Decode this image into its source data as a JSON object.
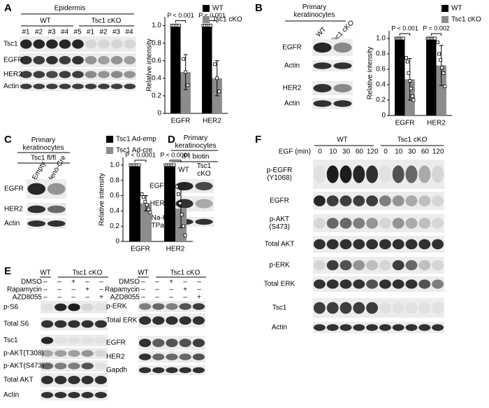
{
  "panel_labels": [
    "A",
    "B",
    "C",
    "D",
    "E",
    "F"
  ],
  "a": {
    "title": "Epidermis",
    "groups": [
      "WT",
      "Tsc1 cKO"
    ],
    "lanes": [
      "#1",
      "#2",
      "#3",
      "#4",
      "#5",
      "#1",
      "#2",
      "#3",
      "#4"
    ],
    "rows": [
      "Tsc1",
      "EGFR",
      "HER2",
      "Actin"
    ],
    "chart": {
      "type": "bar",
      "categories": [
        "EGFR",
        "HER2"
      ],
      "ylabel": "Relative intensity",
      "ylim": [
        0,
        1.1
      ],
      "yticks": [
        0,
        0.2,
        0.4,
        0.6,
        0.8,
        {
          "value": 1,
          "label": "1.0"
        }
      ],
      "annotations": [
        "P < 0.001",
        "P < 0.001"
      ],
      "series": [
        {
          "name": "WT",
          "color": "#000000",
          "values": [
            1,
            1
          ],
          "points": [
            [
              1,
              1,
              1,
              1,
              1
            ],
            [
              1,
              1,
              1,
              1,
              1
            ]
          ]
        },
        {
          "name": "Tsc1 cKO",
          "color": "#8c8c8c",
          "values": [
            0.47,
            0.4
          ],
          "errors": [
            0.2,
            0.2
          ],
          "points": [
            [
              0.62,
              0.47,
              0.32
            ],
            [
              0.56,
              0.4,
              0.25
            ]
          ]
        }
      ]
    }
  },
  "b": {
    "title": [
      "Primary",
      "keratinocytes"
    ],
    "lanes": [
      "WT",
      "Tsc1 cKO"
    ],
    "rows": [
      "EGFR",
      "Actin",
      "HER2",
      "Actin"
    ],
    "chart": {
      "type": "bar",
      "categories": [
        "EGFR",
        "HER2"
      ],
      "ylabel": "Relative intensity",
      "ylim": [
        0,
        1.1
      ],
      "yticks": [
        0,
        0.2,
        0.4,
        0.6,
        0.8,
        {
          "value": 1,
          "label": "1.0"
        }
      ],
      "annotations": [
        "P < 0.001",
        "P = 0.002"
      ],
      "series": [
        {
          "name": "WT",
          "color": "#000000",
          "values": [
            1,
            1
          ],
          "points": [
            [
              1,
              1,
              1,
              1,
              1,
              1
            ],
            [
              1,
              1,
              1,
              1,
              1,
              1
            ]
          ]
        },
        {
          "name": "Tsc1 cKO",
          "color": "#8c8c8c",
          "values": [
            0.47,
            0.65
          ],
          "errors": [
            0.27,
            0.26
          ],
          "points": [
            [
              0.75,
              0.7,
              0.55,
              0.45,
              0.35,
              0.25,
              0.2
            ],
            [
              0.95,
              0.8,
              0.72,
              0.62,
              0.55,
              0.38
            ]
          ]
        }
      ]
    }
  },
  "c": {
    "title": [
      "Primary",
      "keratinocytes"
    ],
    "subtitle": "Tsc1 fl/fl",
    "lanes": [
      "Empty",
      "Adeno-Cre"
    ],
    "rows": [
      "EGFR",
      "HER2",
      "Actin"
    ],
    "chart": {
      "type": "bar",
      "categories": [
        "EGFR",
        "HER2"
      ],
      "ylabel": "Relative intensity",
      "ylim": [
        0,
        1.1
      ],
      "yticks": [
        0,
        0.2,
        0.4,
        0.6,
        0.8,
        {
          "value": 1,
          "label": "1.0"
        }
      ],
      "annotations": [
        "P < 0.0001",
        "P < 0.0001"
      ],
      "series": [
        {
          "name": "Tsc1 Ad-emp",
          "color": "#000000",
          "values": [
            1,
            1
          ],
          "points": [
            [
              1,
              1,
              1,
              1,
              1,
              1
            ],
            [
              1,
              1,
              1,
              1,
              1,
              1
            ]
          ]
        },
        {
          "name": "Tsc1 Ad-cre",
          "color": "#8c8c8c",
          "values": [
            0.5,
            0.43
          ],
          "errors": [
            0.1,
            0.25
          ],
          "points": [
            [
              0.62,
              0.58,
              0.52,
              0.48,
              0.42,
              0.38
            ],
            [
              0.72,
              0.62,
              0.5,
              0.35,
              0.2,
              0.08
            ]
          ]
        }
      ]
    }
  },
  "d": {
    "title": [
      "Primary",
      "keratinocytes"
    ],
    "subtitle": "IP: biotin",
    "lanes": [
      "WT",
      [
        "Tsc1",
        "cKO"
      ]
    ],
    "rows": [
      "EGFR",
      "HER2",
      [
        "Na-K",
        "ATPase"
      ]
    ]
  },
  "e": {
    "groups": [
      "WT",
      "Tsc1 cKO"
    ],
    "treatments": [
      "DMSO",
      "Rapamycin",
      "AZD8055"
    ],
    "signs": [
      [
        "–",
        "–",
        "+",
        "–",
        "–"
      ],
      [
        "–",
        "–",
        "–",
        "+",
        "–"
      ],
      [
        "–",
        "–",
        "–",
        "–",
        "+"
      ]
    ],
    "left_rows": [
      "p-S6",
      "Total S6",
      "Tsc1",
      "p-AKT(T308)",
      "p-AKT(S473)",
      "Total AKT",
      "Actin"
    ],
    "right_rows": [
      "p-ERK",
      "Total ERK",
      "EGFR",
      "HER2",
      "Gapdh"
    ]
  },
  "f": {
    "groups": [
      "WT",
      "Tsc1 cKO"
    ],
    "x_title": "EGF (min)",
    "times": [
      "0",
      "10",
      "30",
      "60",
      "120",
      "0",
      "10",
      "30",
      "60",
      "120"
    ],
    "rows": [
      [
        "p-EGFR",
        "(Y1068)"
      ],
      "EGFR",
      [
        "p-AKT",
        "(S473)"
      ],
      "Total AKT",
      "p-ERK",
      "Total ERK",
      "Tsc1",
      "Actin"
    ]
  }
}
